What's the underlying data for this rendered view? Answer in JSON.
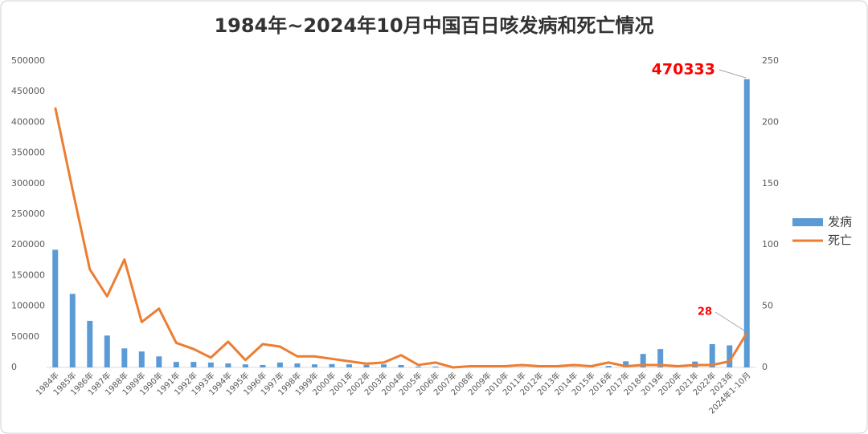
{
  "chart_data": {
    "type": "bar-line",
    "title": "1984年~2024年10月中国百日咳发病和死亡情况",
    "categories": [
      "1984年",
      "1985年",
      "1986年",
      "1987年",
      "1988年",
      "1989年",
      "1990年",
      "1991年",
      "1992年",
      "1993年",
      "1994年",
      "1995年",
      "1996年",
      "1997年",
      "1998年",
      "1999年",
      "2000年",
      "2001年",
      "2002年",
      "2003年",
      "2004年",
      "2005年",
      "2006年",
      "2007年",
      "2008年",
      "2009年",
      "2010年",
      "2011年",
      "2012年",
      "2013年",
      "2014年",
      "2015年",
      "2016年",
      "2017年",
      "2018年",
      "2019年",
      "2020年",
      "2021年",
      "2022年",
      "2023年",
      "2024年1-10月"
    ],
    "series": [
      {
        "name": "发病",
        "type": "bar",
        "color": "#5b9bd5",
        "axis": "y",
        "values": [
          192000,
          120000,
          76000,
          52000,
          31000,
          26000,
          18000,
          9000,
          9000,
          8000,
          6500,
          5000,
          4000,
          8000,
          6500,
          5000,
          5500,
          5000,
          4000,
          5000,
          4000,
          1500,
          1500,
          500,
          500,
          500,
          500,
          500,
          500,
          500,
          500,
          500,
          2500,
          10000,
          22000,
          30000,
          2000,
          9600,
          38000,
          36000,
          470333
        ]
      },
      {
        "name": "死亡",
        "type": "line",
        "color": "#ed7d31",
        "axis": "y2",
        "values": [
          212,
          145,
          80,
          58,
          88,
          37,
          48,
          20,
          15,
          8,
          21,
          6,
          19,
          17,
          9,
          9,
          7,
          5,
          3,
          4,
          10,
          2,
          4,
          0,
          1,
          1,
          1,
          2,
          1,
          1,
          2,
          1,
          4,
          1,
          2,
          2,
          1,
          2,
          2,
          5,
          28
        ]
      }
    ],
    "ylim": [
      0,
      500000
    ],
    "yticks": [
      0,
      50000,
      100000,
      150000,
      200000,
      250000,
      300000,
      350000,
      400000,
      450000,
      500000
    ],
    "y2lim": [
      0,
      250
    ],
    "y2ticks": [
      0,
      50,
      100,
      150,
      200,
      250
    ],
    "legend": "right"
  }
}
